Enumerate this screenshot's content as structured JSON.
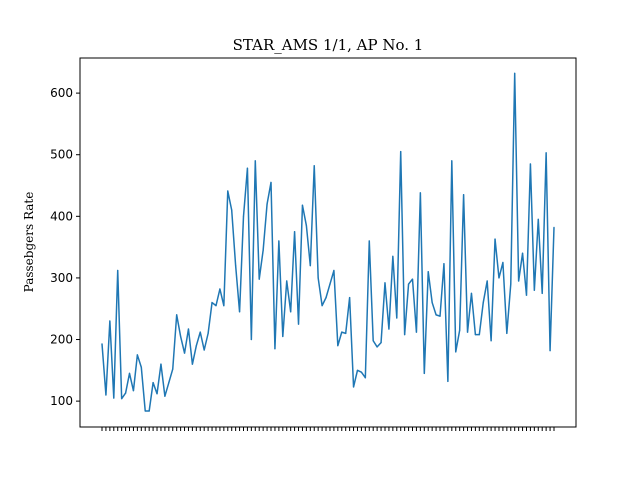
{
  "chart_data": {
    "type": "line",
    "title": "STAR_AMS 1/1, AP No. 1",
    "xlabel": "",
    "ylabel": "Passebgers Rate",
    "ylim": [
      58,
      657
    ],
    "yticks": [
      100,
      200,
      300,
      400,
      500,
      600
    ],
    "grid": false,
    "legend": "none",
    "series": [
      {
        "color": "#1f77b4",
        "values": [
          193,
          110,
          230,
          105,
          312,
          104,
          113,
          145,
          117,
          175,
          155,
          84,
          84,
          130,
          112,
          160,
          108,
          130,
          152,
          240,
          205,
          178,
          217,
          160,
          190,
          212,
          183,
          210,
          260,
          255,
          282,
          255,
          441,
          410,
          320,
          245,
          400,
          478,
          200,
          490,
          298,
          345,
          420,
          455,
          185,
          360,
          205,
          295,
          245,
          375,
          225,
          418,
          385,
          320,
          482,
          300,
          255,
          268,
          290,
          312,
          190,
          212,
          210,
          268,
          123,
          150,
          147,
          138,
          360,
          198,
          188,
          195,
          292,
          217,
          335,
          235,
          505,
          208,
          290,
          298,
          212,
          438,
          145,
          310,
          260,
          240,
          238,
          323,
          132,
          490,
          180,
          215,
          435,
          212,
          275,
          208,
          208,
          260,
          295,
          198,
          363,
          300,
          325,
          210,
          290,
          632,
          295,
          340,
          272,
          485,
          280,
          395,
          275,
          503,
          182,
          382
        ]
      }
    ]
  }
}
